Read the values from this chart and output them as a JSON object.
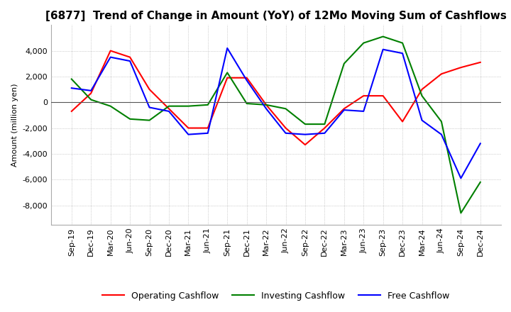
{
  "title": "[6877]  Trend of Change in Amount (YoY) of 12Mo Moving Sum of Cashflows",
  "ylabel": "Amount (million yen)",
  "x_labels": [
    "Sep-19",
    "Dec-19",
    "Mar-20",
    "Jun-20",
    "Sep-20",
    "Dec-20",
    "Mar-21",
    "Jun-21",
    "Sep-21",
    "Dec-21",
    "Mar-22",
    "Jun-22",
    "Sep-22",
    "Dec-22",
    "Mar-23",
    "Jun-23",
    "Sep-23",
    "Dec-23",
    "Mar-24",
    "Jun-24",
    "Sep-24",
    "Dec-24"
  ],
  "operating": [
    -700,
    700,
    4000,
    3500,
    1000,
    -500,
    -2000,
    -2000,
    1900,
    1900,
    -200,
    -2000,
    -3300,
    -2000,
    -500,
    500,
    500,
    -1500,
    1000,
    2200,
    2700,
    3100
  ],
  "investing": [
    1800,
    200,
    -300,
    -1300,
    -1400,
    -300,
    -300,
    -200,
    2300,
    -100,
    -200,
    -500,
    -1700,
    -1700,
    3000,
    4600,
    5100,
    4600,
    500,
    -1500,
    -8600,
    -6200
  ],
  "free": [
    1100,
    900,
    3500,
    3200,
    -400,
    -700,
    -2500,
    -2400,
    4200,
    1700,
    -500,
    -2400,
    -2500,
    -2400,
    -600,
    -700,
    4100,
    3800,
    -1400,
    -2500,
    -5900,
    -3200
  ],
  "operating_color": "#ff0000",
  "investing_color": "#008000",
  "free_color": "#0000ff",
  "ylim": [
    -9500,
    6000
  ],
  "yticks": [
    -8000,
    -6000,
    -4000,
    -2000,
    0,
    2000,
    4000
  ],
  "grid_color": "#aaaaaa",
  "title_fontsize": 11,
  "axis_fontsize": 8,
  "legend_fontsize": 9,
  "background_color": "#ffffff"
}
